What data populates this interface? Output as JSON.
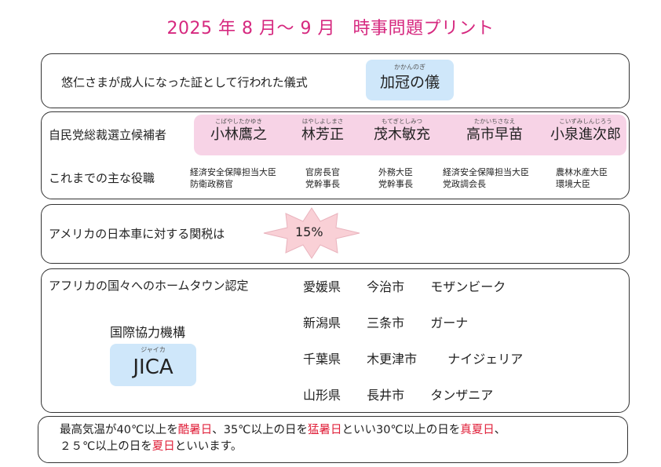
{
  "title": "2025 年 8 月～ 9 月　時事問題プリント",
  "ceremony": {
    "question": "悠仁さまが成人になった証として行われた儀式",
    "answer_ruby": "かかんのぎ",
    "answer": "加冠の儀"
  },
  "ldp": {
    "heading": "自民党総裁選立候補者",
    "roles_heading": "これまでの主な役職",
    "candidates": [
      {
        "ruby": "こばやしたかゆき",
        "name": "小林鷹之",
        "roles": [
          "経済安全保障担当大臣",
          "防衛政務官"
        ]
      },
      {
        "ruby": "はやしよしまさ",
        "name": "林芳正",
        "roles": [
          "官房長官",
          "党幹事長"
        ]
      },
      {
        "ruby": "もてぎとしみつ",
        "name": "茂木敏充",
        "roles": [
          "外務大臣",
          "党幹事長"
        ]
      },
      {
        "ruby": "たかいちさなえ",
        "name": "高市早苗",
        "roles": [
          "経済安全保障担当大臣",
          "党政調会長"
        ]
      },
      {
        "ruby": "こいずみしんじろう",
        "name": "小泉進次郎",
        "roles": [
          "農林水産大臣",
          "環境大臣"
        ]
      }
    ]
  },
  "tariff": {
    "question": "アメリカの日本車に対する関税は",
    "answer": "15%"
  },
  "hometown": {
    "heading": "アフリカの国々へのホームタウン認定",
    "org_label": "国際協力機構",
    "org_ruby": "ジャイカ",
    "org_abbr": "JICA",
    "rows": [
      {
        "prefecture": "愛媛県",
        "city": "今治市",
        "country": "モザンビーク"
      },
      {
        "prefecture": "新潟県",
        "city": "三条市",
        "country": "ガーナ"
      },
      {
        "prefecture": "千葉県",
        "city": "木更津市",
        "country": "ナイジェリア"
      },
      {
        "prefecture": "山形県",
        "city": "長井市",
        "country": "タンザニア"
      }
    ]
  },
  "heat": {
    "line1_a": "最高気温が40℃以上を",
    "line1_b": "酷暑日",
    "line1_c": "、35℃以上の日を",
    "line1_d": "猛暑日",
    "line1_e": "といい30℃以上の日を",
    "line1_f": "真夏日",
    "line1_g": "、",
    "line2_a": "２５℃以上の日を",
    "line2_b": "夏日",
    "line2_c": "といいます。"
  },
  "colors": {
    "title": "#d6287f",
    "answer_pill": "#cfe7fa",
    "candidate_band": "#f7d3e6",
    "burst_fill": "#f9d0d6",
    "emphasis_red": "#e0203a"
  }
}
